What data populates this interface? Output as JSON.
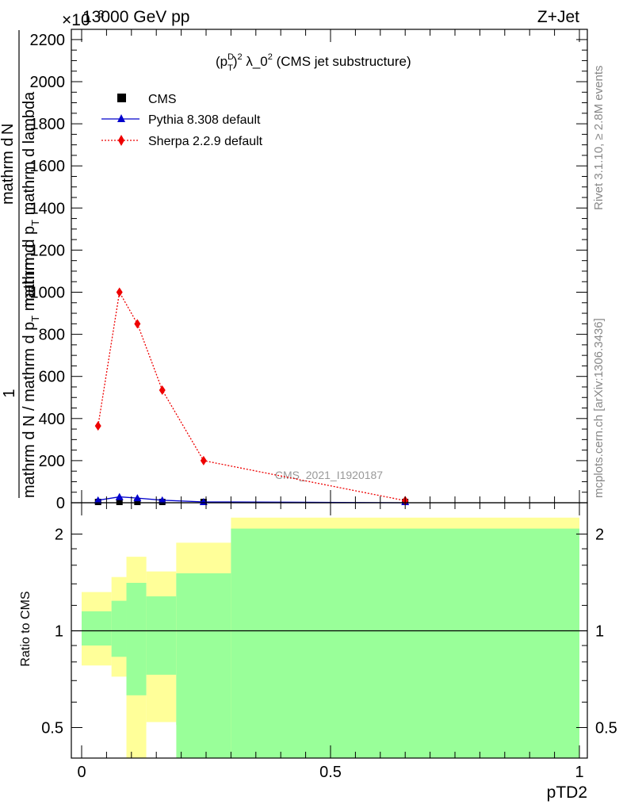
{
  "header": {
    "left": "13000 GeV pp",
    "right": "Z+Jet",
    "exponent": "×10",
    "exponent_power": "3"
  },
  "side_labels": {
    "rivet": "Rivet 3.1.10, ≥ 2.8M events",
    "mcplots": "mcplots.cern.ch [arXiv:1306.3436]"
  },
  "watermark": "CMS_2021_I1920187",
  "colors": {
    "cms": "#000000",
    "pythia": "#0000cc",
    "sherpa": "#ee0000",
    "band_yellow": "#ffff99",
    "band_green": "#99ff99"
  },
  "chart_data": [
    {
      "type": "scatter",
      "title": "(p_T^D)^2 λ_0^2 (CMS jet substructure)",
      "title_parts": {
        "pre": "(p",
        "sup1": "D",
        "sub1": "T",
        "mid": ")",
        "sup2": "2",
        "post1": " λ_0",
        "sup3": "2",
        "post2": " (CMS jet substructure)"
      },
      "ylabel": {
        "one": "1",
        "den": "mathrm d N / mathrm d p",
        "den_sub": "T",
        "den_tail": " mathrm d",
        "num": "mathrm d",
        "num2": "N",
        "num_line2": "mathrm d p",
        "num_line2_sub": "T",
        "num_line2_tail": " mathrm d lambda"
      },
      "ylim": [
        0,
        2250
      ],
      "yticks": [
        0,
        200,
        400,
        600,
        800,
        1000,
        1200,
        1400,
        1600,
        1800,
        2000,
        2200
      ],
      "ytick_labels": [
        "0",
        "200",
        "400",
        "600",
        "800",
        "1000",
        "1200",
        "1400",
        "1600",
        "1800",
        "2000",
        "2200"
      ],
      "xlim": [
        -0.02,
        1.0
      ],
      "legend_position": "top-left",
      "series": [
        {
          "name": "CMS",
          "marker": "square",
          "x": [
            0.033,
            0.076,
            0.112,
            0.162,
            0.245,
            0.65
          ],
          "y": [
            0,
            0,
            0,
            0,
            0,
            0
          ]
        },
        {
          "name": "Pythia 8.308 default",
          "marker": "triangle",
          "x": [
            0.033,
            0.076,
            0.112,
            0.162,
            0.245,
            0.65
          ],
          "y": [
            12,
            28,
            22,
            12,
            4,
            0
          ]
        },
        {
          "name": "Sherpa 2.2.9 default",
          "marker": "diamond",
          "x": [
            0.033,
            0.076,
            0.112,
            0.162,
            0.245,
            0.65
          ],
          "y": [
            365,
            1000,
            850,
            535,
            200,
            10
          ]
        }
      ]
    },
    {
      "type": "area",
      "ylabel": "Ratio to CMS",
      "xlabel": "pTD2",
      "xlim": [
        -0.02,
        1.0
      ],
      "xticks": [
        0,
        0.5,
        1
      ],
      "xtick_labels": [
        "0",
        "0.5",
        "1"
      ],
      "ylim": [
        0.35,
        2.25
      ],
      "yticks": [
        0.5,
        1,
        2
      ],
      "ytick_labels": [
        "0.5",
        "1",
        "2"
      ],
      "reference": 1,
      "bins": [
        {
          "lo": 0.0,
          "hi": 0.06,
          "y_lo": 0.78,
          "y_hi": 1.32,
          "g_lo": 0.9,
          "g_hi": 1.15
        },
        {
          "lo": 0.06,
          "hi": 0.09,
          "y_lo": 0.72,
          "y_hi": 1.47,
          "g_lo": 0.83,
          "g_hi": 1.24
        },
        {
          "lo": 0.09,
          "hi": 0.13,
          "y_lo": 0.35,
          "y_hi": 1.7,
          "g_lo": 0.63,
          "g_hi": 1.41
        },
        {
          "lo": 0.13,
          "hi": 0.19,
          "y_lo": 0.52,
          "y_hi": 1.53,
          "g_lo": 0.73,
          "g_hi": 1.28
        },
        {
          "lo": 0.19,
          "hi": 0.3,
          "y_lo": 0.35,
          "y_hi": 1.88,
          "g_lo": 0.35,
          "g_hi": 1.51
        },
        {
          "lo": 0.3,
          "hi": 1.0,
          "y_lo": 0.35,
          "y_hi": 2.25,
          "g_lo": 0.35,
          "g_hi": 2.08
        }
      ],
      "white_boxes": [
        {
          "lo": 0.13,
          "hi": 0.19,
          "y_lo": 0.35,
          "y_hi": 0.51
        }
      ]
    }
  ]
}
